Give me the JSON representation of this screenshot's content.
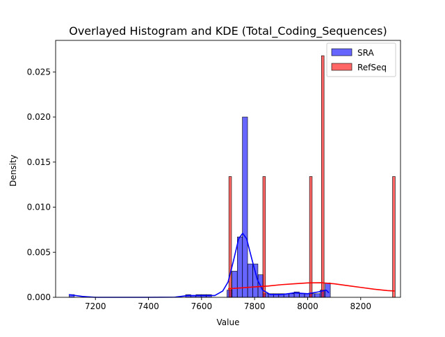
{
  "chart_data": {
    "type": "histogram",
    "title": "Overlayed Histogram and KDE (Total_Coding_Sequences)",
    "xlabel": "Value",
    "ylabel": "Density",
    "xlim": [
      7050,
      8350
    ],
    "ylim": [
      0,
      0.0285
    ],
    "xticks": [
      7200,
      7400,
      7600,
      7800,
      8000,
      8200
    ],
    "yticks": [
      0.0,
      0.005,
      0.01,
      0.015,
      0.02,
      0.025
    ],
    "ytick_labels": [
      "0.000",
      "0.005",
      "0.010",
      "0.015",
      "0.020",
      "0.025"
    ],
    "grid": false,
    "legend_position": "top-right",
    "series": [
      {
        "name": "SRA",
        "color": "#0000ff",
        "bin_width": 19.5,
        "bins": [
          [
            7101,
            0.0003
          ],
          [
            7540,
            0.0003
          ],
          [
            7559,
            0.0002
          ],
          [
            7579,
            0.0003
          ],
          [
            7598,
            0.0003
          ],
          [
            7618,
            0.0003
          ],
          [
            7696,
            0.0008
          ],
          [
            7715,
            0.0029
          ],
          [
            7735,
            0.0067
          ],
          [
            7754,
            0.02
          ],
          [
            7774,
            0.0037
          ],
          [
            7793,
            0.0037
          ],
          [
            7813,
            0.0025
          ],
          [
            7832,
            0.0004
          ],
          [
            7852,
            0.0004
          ],
          [
            7871,
            0.0004
          ],
          [
            7891,
            0.0004
          ],
          [
            7910,
            0.0004
          ],
          [
            7930,
            0.0004
          ],
          [
            7949,
            0.0006
          ],
          [
            7969,
            0.0004
          ],
          [
            7988,
            0.0004
          ],
          [
            8008,
            0.0004
          ],
          [
            8027,
            0.0004
          ],
          [
            8047,
            0.0008
          ],
          [
            8066,
            0.0016
          ]
        ],
        "kde": [
          [
            7100,
            0.0003
          ],
          [
            7150,
            0.0001
          ],
          [
            7200,
            0.0
          ],
          [
            7300,
            0.0
          ],
          [
            7400,
            0.0
          ],
          [
            7500,
            2e-05
          ],
          [
            7550,
            0.0002
          ],
          [
            7600,
            0.0002
          ],
          [
            7650,
            0.0002
          ],
          [
            7680,
            0.0007
          ],
          [
            7700,
            0.0017
          ],
          [
            7720,
            0.004
          ],
          [
            7740,
            0.0065
          ],
          [
            7755,
            0.0071
          ],
          [
            7770,
            0.0065
          ],
          [
            7790,
            0.0042
          ],
          [
            7810,
            0.002
          ],
          [
            7830,
            0.0008
          ],
          [
            7860,
            0.0003
          ],
          [
            7900,
            0.0003
          ],
          [
            7950,
            0.0005
          ],
          [
            8000,
            0.0004
          ],
          [
            8040,
            0.0006
          ],
          [
            8070,
            0.0008
          ],
          [
            8080,
            0.0005
          ]
        ]
      },
      {
        "name": "RefSeq",
        "color": "#ff0000",
        "bin_width": 10,
        "bins": [
          [
            7703,
            0.0134
          ],
          [
            7831,
            0.0134
          ],
          [
            8007,
            0.0134
          ],
          [
            8052,
            0.0268
          ],
          [
            8320,
            0.0134
          ]
        ],
        "kde": [
          [
            7700,
            0.00095
          ],
          [
            7750,
            0.00105
          ],
          [
            7800,
            0.00115
          ],
          [
            7850,
            0.00125
          ],
          [
            7900,
            0.0014
          ],
          [
            7950,
            0.0015
          ],
          [
            8000,
            0.0016
          ],
          [
            8050,
            0.00162
          ],
          [
            8100,
            0.0015
          ],
          [
            8150,
            0.0013
          ],
          [
            8200,
            0.0011
          ],
          [
            8250,
            0.0009
          ],
          [
            8300,
            0.00075
          ],
          [
            8328,
            0.0007
          ]
        ]
      }
    ]
  }
}
